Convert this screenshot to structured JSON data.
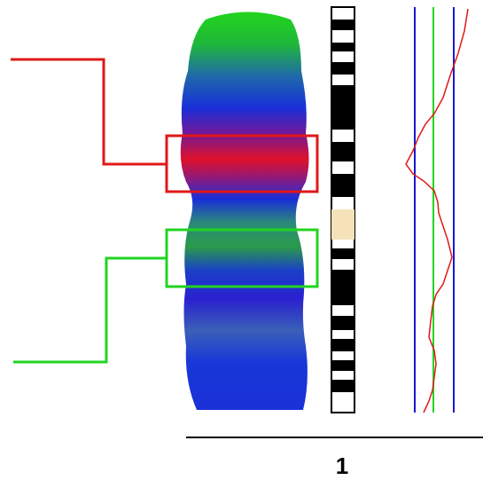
{
  "chromosome": {
    "label": "1"
  }
}
